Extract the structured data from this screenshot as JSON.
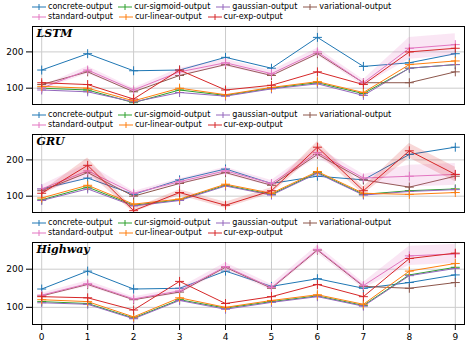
{
  "chart_data": [
    {
      "type": "line",
      "title": "LSTM",
      "x": [
        0,
        1,
        2,
        3,
        4,
        5,
        6,
        7,
        8,
        9
      ],
      "series": [
        {
          "name": "concrete-output",
          "color": "#1f77b4",
          "values": [
            150,
            195,
            148,
            150,
            185,
            155,
            240,
            160,
            170,
            195
          ]
        },
        {
          "name": "cur-sigmoid-output",
          "color": "#2ca02c",
          "values": [
            100,
            95,
            60,
            95,
            80,
            100,
            115,
            85,
            155,
            165
          ]
        },
        {
          "name": "gaussian-output",
          "color": "#9467bd",
          "values": [
            95,
            90,
            62,
            88,
            78,
            98,
            112,
            80,
            155,
            165
          ]
        },
        {
          "name": "variational-output",
          "color": "#8c564b",
          "values": [
            110,
            145,
            90,
            135,
            165,
            135,
            195,
            115,
            115,
            145
          ]
        },
        {
          "name": "standard-output",
          "color": "#e377c2",
          "values": [
            100,
            150,
            95,
            145,
            170,
            140,
            200,
            115,
            210,
            220
          ],
          "std": [
            5,
            10,
            5,
            10,
            10,
            8,
            10,
            8,
            30,
            30
          ]
        },
        {
          "name": "cur-linear-output",
          "color": "#ff7f0e",
          "values": [
            105,
            100,
            65,
            100,
            82,
            102,
            118,
            88,
            165,
            175
          ]
        },
        {
          "name": "cur-exp-output",
          "color": "#d62728",
          "values": [
            115,
            110,
            70,
            150,
            95,
            108,
            145,
            110,
            200,
            210
          ]
        }
      ],
      "xlim": [
        -0.2,
        9.2
      ],
      "xticks": [
        0,
        2,
        4,
        6,
        8
      ],
      "ylim": [
        55,
        270
      ],
      "yticks": [
        100,
        200
      ],
      "grid": true,
      "marker": "plus",
      "tick_labels": "y"
    },
    {
      "type": "line",
      "title": "GRU",
      "x": [
        0,
        1,
        2,
        3,
        4,
        5,
        6,
        7,
        8,
        9
      ],
      "series": [
        {
          "name": "concrete-output",
          "color": "#1f77b4",
          "values": [
            120,
            150,
            105,
            145,
            175,
            135,
            155,
            145,
            215,
            235
          ]
        },
        {
          "name": "cur-sigmoid-output",
          "color": "#2ca02c",
          "values": [
            90,
            125,
            75,
            90,
            130,
            105,
            165,
            105,
            115,
            120
          ]
        },
        {
          "name": "gaussian-output",
          "color": "#9467bd",
          "values": [
            88,
            120,
            73,
            88,
            128,
            103,
            163,
            103,
            113,
            118
          ]
        },
        {
          "name": "variational-output",
          "color": "#8c564b",
          "values": [
            115,
            165,
            100,
            135,
            165,
            130,
            215,
            145,
            125,
            155
          ]
        },
        {
          "name": "standard-output",
          "color": "#e377c2",
          "values": [
            120,
            170,
            108,
            140,
            170,
            135,
            220,
            150,
            155,
            160
          ],
          "std": [
            10,
            20,
            5,
            8,
            10,
            8,
            15,
            10,
            30,
            30
          ]
        },
        {
          "name": "cur-linear-output",
          "color": "#ff7f0e",
          "values": [
            95,
            130,
            78,
            92,
            133,
            108,
            168,
            108,
            105,
            110
          ]
        },
        {
          "name": "cur-exp-output",
          "color": "#d62728",
          "values": [
            108,
            185,
            60,
            110,
            75,
            115,
            235,
            115,
            225,
            160
          ],
          "std": [
            5,
            20,
            5,
            8,
            8,
            8,
            15,
            10,
            20,
            20
          ]
        }
      ],
      "xlim": [
        -0.2,
        9.2
      ],
      "xticks": [
        0,
        2,
        4,
        6,
        8
      ],
      "ylim": [
        55,
        270
      ],
      "yticks": [
        100,
        200
      ],
      "grid": true,
      "marker": "plus",
      "tick_labels": "y"
    },
    {
      "type": "line",
      "title": "Highway",
      "x": [
        0,
        1,
        2,
        3,
        4,
        5,
        6,
        7,
        8,
        9
      ],
      "series": [
        {
          "name": "concrete-output",
          "color": "#1f77b4",
          "values": [
            148,
            195,
            148,
            150,
            195,
            155,
            175,
            150,
            165,
            185
          ]
        },
        {
          "name": "cur-sigmoid-output",
          "color": "#2ca02c",
          "values": [
            115,
            110,
            72,
            120,
            98,
            115,
            130,
            105,
            185,
            205
          ]
        },
        {
          "name": "gaussian-output",
          "color": "#9467bd",
          "values": [
            112,
            108,
            70,
            118,
            95,
            113,
            128,
            103,
            183,
            202
          ]
        },
        {
          "name": "variational-output",
          "color": "#8c564b",
          "values": [
            130,
            160,
            120,
            140,
            205,
            150,
            250,
            155,
            150,
            165
          ]
        },
        {
          "name": "standard-output",
          "color": "#e377c2",
          "values": [
            132,
            162,
            122,
            143,
            207,
            152,
            252,
            157,
            235,
            240
          ],
          "std": [
            5,
            8,
            5,
            8,
            10,
            8,
            10,
            8,
            25,
            25
          ]
        },
        {
          "name": "cur-linear-output",
          "color": "#ff7f0e",
          "values": [
            120,
            115,
            75,
            125,
            100,
            118,
            133,
            108,
            195,
            215
          ]
        },
        {
          "name": "cur-exp-output",
          "color": "#d62728",
          "values": [
            128,
            125,
            93,
            168,
            110,
            128,
            160,
            128,
            228,
            242
          ]
        }
      ],
      "xlim": [
        -0.2,
        9.2
      ],
      "xticks": [
        0,
        1,
        2,
        3,
        4,
        5,
        6,
        7,
        8,
        9
      ],
      "ylim": [
        55,
        270
      ],
      "yticks": [
        100,
        200
      ],
      "grid": true,
      "marker": "plus"
    }
  ]
}
